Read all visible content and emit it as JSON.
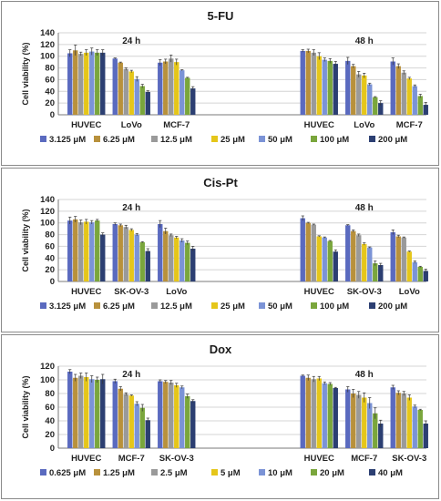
{
  "palette": [
    "#5a6abf",
    "#b8913c",
    "#9a9a9a",
    "#e5c61a",
    "#7b93d6",
    "#7aa63c",
    "#2c3f72"
  ],
  "chart_data": [
    {
      "type": "bar",
      "title": "5-FU",
      "ylabel": "Cell viability (%)",
      "ylim": [
        0,
        140
      ],
      "yticks": [
        0,
        20,
        40,
        60,
        80,
        100,
        120,
        140
      ],
      "grid": true,
      "legend_position": "bottom",
      "legend": [
        "3.125 μM",
        "6.25 μM",
        "12.5 μM",
        "25 μM",
        "50 μM",
        "100 μM",
        "200 μM"
      ],
      "time_labels": [
        "24 h",
        "48 h"
      ],
      "groups": [
        {
          "time": "24 h",
          "cell_line": "HUVEC",
          "values": [
            105,
            110,
            104,
            106,
            108,
            106,
            106
          ],
          "errors": [
            6,
            9,
            3,
            5,
            6,
            5,
            5
          ]
        },
        {
          "time": "24 h",
          "cell_line": "LoVo",
          "values": [
            96,
            89,
            78,
            74,
            61,
            49,
            39
          ],
          "errors": [
            1,
            1,
            2,
            2,
            4,
            3,
            2
          ]
        },
        {
          "time": "24 h",
          "cell_line": "MCF-7",
          "values": [
            89,
            91,
            96,
            90,
            76,
            63,
            45
          ],
          "errors": [
            5,
            4,
            6,
            5,
            1,
            1,
            3
          ]
        },
        {
          "time": "48 h",
          "cell_line": "HUVEC",
          "values": [
            109,
            109,
            106,
            100,
            94,
            92,
            87
          ],
          "errors": [
            2,
            3,
            5,
            6,
            3,
            4,
            4
          ]
        },
        {
          "time": "48 h",
          "cell_line": "LoVo",
          "values": [
            92,
            83,
            69,
            67,
            52,
            30,
            20
          ],
          "errors": [
            6,
            3,
            5,
            4,
            2,
            1,
            4
          ]
        },
        {
          "time": "48 h",
          "cell_line": "MCF-7",
          "values": [
            91,
            83,
            72,
            62,
            49,
            32,
            17
          ],
          "errors": [
            6,
            4,
            3,
            2,
            2,
            3,
            4
          ]
        }
      ]
    },
    {
      "type": "bar",
      "title": "Cis-Pt",
      "ylabel": "Cell viability (%)",
      "ylim": [
        0,
        140
      ],
      "yticks": [
        0,
        20,
        40,
        60,
        80,
        100,
        120,
        140
      ],
      "grid": true,
      "legend_position": "bottom",
      "legend": [
        "3.125 μM",
        "6.25 μM",
        "12.5 μM",
        "25 μM",
        "50 μM",
        "100 μM",
        "200 μM"
      ],
      "time_labels": [
        "24 h",
        "48 h"
      ],
      "groups": [
        {
          "time": "24 h",
          "cell_line": "HUVEC",
          "values": [
            104,
            106,
            101,
            102,
            101,
            104,
            80
          ],
          "errors": [
            6,
            5,
            4,
            4,
            3,
            2,
            3
          ]
        },
        {
          "time": "24 h",
          "cell_line": "SK-OV-3",
          "values": [
            98,
            96,
            93,
            88,
            80,
            67,
            52
          ],
          "errors": [
            2,
            2,
            3,
            2,
            2,
            1,
            4
          ]
        },
        {
          "time": "24 h",
          "cell_line": "LoVo",
          "values": [
            98,
            86,
            79,
            75,
            70,
            66,
            56
          ],
          "errors": [
            6,
            5,
            2,
            2,
            3,
            3,
            4
          ]
        },
        {
          "time": "48 h",
          "cell_line": "HUVEC",
          "values": [
            108,
            100,
            97,
            77,
            75,
            69,
            51
          ],
          "errors": [
            4,
            1,
            1,
            1,
            1,
            1,
            3
          ]
        },
        {
          "time": "48 h",
          "cell_line": "SK-OV-3",
          "values": [
            96,
            86,
            79,
            64,
            58,
            31,
            28
          ],
          "errors": [
            1,
            2,
            2,
            2,
            1,
            4,
            3
          ]
        },
        {
          "time": "48 h",
          "cell_line": "LoVo",
          "values": [
            84,
            77,
            75,
            51,
            33,
            25,
            18
          ],
          "errors": [
            4,
            2,
            1,
            1,
            2,
            1,
            3
          ]
        }
      ]
    },
    {
      "type": "bar",
      "title": "Dox",
      "ylabel": "Cell viability (%)",
      "ylim": [
        0,
        120
      ],
      "yticks": [
        0,
        20,
        40,
        60,
        80,
        100,
        120
      ],
      "grid": true,
      "legend_position": "bottom",
      "legend": [
        "0.625 μM",
        "1.25 μM",
        "2.5 μM",
        "5 μM",
        "10 μM",
        "20 μM",
        "40 μM"
      ],
      "time_labels": [
        "24 h",
        "48 h"
      ],
      "groups": [
        {
          "time": "24 h",
          "cell_line": "HUVEC",
          "values": [
            112,
            103,
            106,
            104,
            101,
            100,
            101
          ],
          "errors": [
            3,
            5,
            4,
            6,
            5,
            4,
            7
          ]
        },
        {
          "time": "24 h",
          "cell_line": "MCF-7",
          "values": [
            98,
            87,
            79,
            77,
            65,
            59,
            41
          ],
          "errors": [
            3,
            3,
            2,
            1,
            3,
            5,
            3
          ]
        },
        {
          "time": "24 h",
          "cell_line": "SK-OV-3",
          "values": [
            98,
            97,
            96,
            92,
            89,
            76,
            69
          ],
          "errors": [
            2,
            2,
            3,
            3,
            2,
            3,
            2
          ]
        },
        {
          "time": "48 h",
          "cell_line": "HUVEC",
          "values": [
            106,
            103,
            101,
            102,
            95,
            94,
            88
          ],
          "errors": [
            1,
            4,
            4,
            3,
            2,
            2,
            1
          ]
        },
        {
          "time": "48 h",
          "cell_line": "MCF-7",
          "values": [
            86,
            80,
            78,
            74,
            66,
            51,
            36
          ],
          "errors": [
            4,
            6,
            5,
            7,
            8,
            8,
            5
          ]
        },
        {
          "time": "48 h",
          "cell_line": "SK-OV-3",
          "values": [
            89,
            81,
            80,
            74,
            61,
            56,
            36
          ],
          "errors": [
            3,
            3,
            3,
            4,
            2,
            1,
            4
          ]
        }
      ]
    }
  ]
}
